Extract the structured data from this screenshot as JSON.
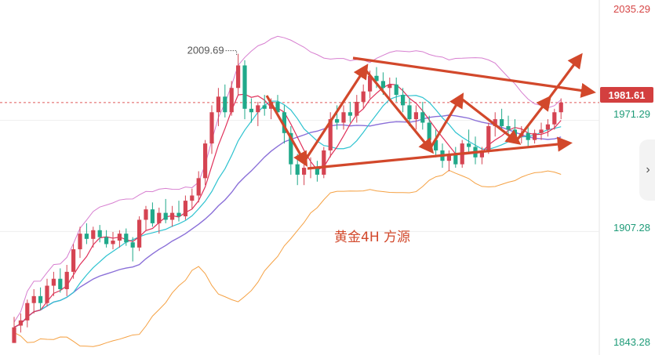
{
  "chart_data": {
    "type": "candlestick",
    "title": "",
    "annotation": "黄金4H   方源",
    "y_axis": {
      "ticks": [
        "2035.29",
        "1971.29",
        "1907.28",
        "1843.28"
      ],
      "ylim": [
        1843.28,
        2035.29
      ]
    },
    "current_price": "1981.61",
    "high_label": "2009.69",
    "colors": {
      "up": "#d54452",
      "down": "#20a98a",
      "ma_fast": "#e0305a",
      "ma_mid": "#2fc3d0",
      "ma_slow": "#8a6fd8",
      "boll_upper": "#d77fd0",
      "boll_lower": "#f5a143",
      "arrows": "#d2482b"
    },
    "candles": [
      {
        "o": 1843,
        "h": 1858,
        "l": 1843,
        "c": 1852
      },
      {
        "o": 1853,
        "h": 1860,
        "l": 1849,
        "c": 1856
      },
      {
        "o": 1856,
        "h": 1868,
        "l": 1852,
        "c": 1866
      },
      {
        "o": 1866,
        "h": 1874,
        "l": 1860,
        "c": 1870
      },
      {
        "o": 1870,
        "h": 1875,
        "l": 1862,
        "c": 1866
      },
      {
        "o": 1866,
        "h": 1880,
        "l": 1864,
        "c": 1876
      },
      {
        "o": 1876,
        "h": 1884,
        "l": 1870,
        "c": 1880
      },
      {
        "o": 1880,
        "h": 1886,
        "l": 1872,
        "c": 1874
      },
      {
        "o": 1874,
        "h": 1888,
        "l": 1870,
        "c": 1884
      },
      {
        "o": 1884,
        "h": 1900,
        "l": 1880,
        "c": 1897
      },
      {
        "o": 1897,
        "h": 1910,
        "l": 1892,
        "c": 1906
      },
      {
        "o": 1906,
        "h": 1912,
        "l": 1900,
        "c": 1903
      },
      {
        "o": 1903,
        "h": 1910,
        "l": 1898,
        "c": 1908
      },
      {
        "o": 1908,
        "h": 1911,
        "l": 1901,
        "c": 1904
      },
      {
        "o": 1904,
        "h": 1908,
        "l": 1898,
        "c": 1900
      },
      {
        "o": 1900,
        "h": 1907,
        "l": 1897,
        "c": 1902
      },
      {
        "o": 1902,
        "h": 1908,
        "l": 1898,
        "c": 1906
      },
      {
        "o": 1906,
        "h": 1909,
        "l": 1899,
        "c": 1901
      },
      {
        "o": 1901,
        "h": 1904,
        "l": 1890,
        "c": 1898
      },
      {
        "o": 1898,
        "h": 1916,
        "l": 1896,
        "c": 1914
      },
      {
        "o": 1914,
        "h": 1922,
        "l": 1908,
        "c": 1920
      },
      {
        "o": 1920,
        "h": 1924,
        "l": 1910,
        "c": 1912
      },
      {
        "o": 1912,
        "h": 1921,
        "l": 1906,
        "c": 1918
      },
      {
        "o": 1918,
        "h": 1926,
        "l": 1912,
        "c": 1914
      },
      {
        "o": 1914,
        "h": 1922,
        "l": 1910,
        "c": 1918
      },
      {
        "o": 1918,
        "h": 1925,
        "l": 1913,
        "c": 1916
      },
      {
        "o": 1916,
        "h": 1928,
        "l": 1914,
        "c": 1925
      },
      {
        "o": 1925,
        "h": 1932,
        "l": 1920,
        "c": 1928
      },
      {
        "o": 1928,
        "h": 1942,
        "l": 1924,
        "c": 1938
      },
      {
        "o": 1938,
        "h": 1960,
        "l": 1934,
        "c": 1958
      },
      {
        "o": 1958,
        "h": 1980,
        "l": 1952,
        "c": 1976
      },
      {
        "o": 1976,
        "h": 1990,
        "l": 1968,
        "c": 1985
      },
      {
        "o": 1985,
        "h": 1992,
        "l": 1973,
        "c": 1976
      },
      {
        "o": 1976,
        "h": 1994,
        "l": 1974,
        "c": 1990
      },
      {
        "o": 1990,
        "h": 2009.69,
        "l": 1986,
        "c": 2003
      },
      {
        "o": 2003,
        "h": 2006,
        "l": 1972,
        "c": 1978
      },
      {
        "o": 1978,
        "h": 1984,
        "l": 1970,
        "c": 1976
      },
      {
        "o": 1976,
        "h": 1982,
        "l": 1968,
        "c": 1980
      },
      {
        "o": 1980,
        "h": 1986,
        "l": 1974,
        "c": 1978
      },
      {
        "o": 1978,
        "h": 1984,
        "l": 1972,
        "c": 1982
      },
      {
        "o": 1982,
        "h": 1986,
        "l": 1974,
        "c": 1976
      },
      {
        "o": 1976,
        "h": 1980,
        "l": 1958,
        "c": 1964
      },
      {
        "o": 1964,
        "h": 1968,
        "l": 1940,
        "c": 1946
      },
      {
        "o": 1946,
        "h": 1952,
        "l": 1934,
        "c": 1940
      },
      {
        "o": 1940,
        "h": 1948,
        "l": 1934,
        "c": 1944
      },
      {
        "o": 1944,
        "h": 1950,
        "l": 1938,
        "c": 1944
      },
      {
        "o": 1944,
        "h": 1948,
        "l": 1936,
        "c": 1940
      },
      {
        "o": 1940,
        "h": 1956,
        "l": 1938,
        "c": 1954
      },
      {
        "o": 1954,
        "h": 1976,
        "l": 1950,
        "c": 1972
      },
      {
        "o": 1972,
        "h": 1980,
        "l": 1966,
        "c": 1970
      },
      {
        "o": 1970,
        "h": 1980,
        "l": 1966,
        "c": 1976
      },
      {
        "o": 1976,
        "h": 1982,
        "l": 1970,
        "c": 1974
      },
      {
        "o": 1974,
        "h": 1986,
        "l": 1970,
        "c": 1982
      },
      {
        "o": 1982,
        "h": 1992,
        "l": 1978,
        "c": 1988
      },
      {
        "o": 1988,
        "h": 2000,
        "l": 1984,
        "c": 1997
      },
      {
        "o": 1997,
        "h": 2002,
        "l": 1990,
        "c": 1994
      },
      {
        "o": 1994,
        "h": 1999,
        "l": 1986,
        "c": 1990
      },
      {
        "o": 1990,
        "h": 1996,
        "l": 1984,
        "c": 1992
      },
      {
        "o": 1992,
        "h": 1996,
        "l": 1982,
        "c": 1986
      },
      {
        "o": 1986,
        "h": 1990,
        "l": 1976,
        "c": 1980
      },
      {
        "o": 1980,
        "h": 1984,
        "l": 1968,
        "c": 1972
      },
      {
        "o": 1972,
        "h": 1980,
        "l": 1966,
        "c": 1976
      },
      {
        "o": 1976,
        "h": 1982,
        "l": 1966,
        "c": 1970
      },
      {
        "o": 1970,
        "h": 1974,
        "l": 1956,
        "c": 1960
      },
      {
        "o": 1960,
        "h": 1966,
        "l": 1950,
        "c": 1954
      },
      {
        "o": 1954,
        "h": 1958,
        "l": 1944,
        "c": 1948
      },
      {
        "o": 1948,
        "h": 1954,
        "l": 1942,
        "c": 1952
      },
      {
        "o": 1952,
        "h": 1956,
        "l": 1944,
        "c": 1946
      },
      {
        "o": 1946,
        "h": 1960,
        "l": 1944,
        "c": 1958
      },
      {
        "o": 1958,
        "h": 1966,
        "l": 1952,
        "c": 1956
      },
      {
        "o": 1956,
        "h": 1962,
        "l": 1946,
        "c": 1950
      },
      {
        "o": 1950,
        "h": 1956,
        "l": 1946,
        "c": 1954
      },
      {
        "o": 1954,
        "h": 1970,
        "l": 1952,
        "c": 1968
      },
      {
        "o": 1968,
        "h": 1976,
        "l": 1962,
        "c": 1972
      },
      {
        "o": 1972,
        "h": 1978,
        "l": 1966,
        "c": 1968
      },
      {
        "o": 1968,
        "h": 1974,
        "l": 1962,
        "c": 1966
      },
      {
        "o": 1966,
        "h": 1972,
        "l": 1960,
        "c": 1962
      },
      {
        "o": 1962,
        "h": 1968,
        "l": 1958,
        "c": 1964
      },
      {
        "o": 1964,
        "h": 1968,
        "l": 1956,
        "c": 1960
      },
      {
        "o": 1960,
        "h": 1966,
        "l": 1958,
        "c": 1964
      },
      {
        "o": 1964,
        "h": 1970,
        "l": 1960,
        "c": 1966
      },
      {
        "o": 1966,
        "h": 1972,
        "l": 1962,
        "c": 1969
      },
      {
        "o": 1969,
        "h": 1978,
        "l": 1966,
        "c": 1976
      },
      {
        "o": 1976,
        "h": 1984,
        "l": 1972,
        "c": 1981.61
      }
    ]
  },
  "ui": {
    "expand_icon": "chevron-right-icon"
  }
}
